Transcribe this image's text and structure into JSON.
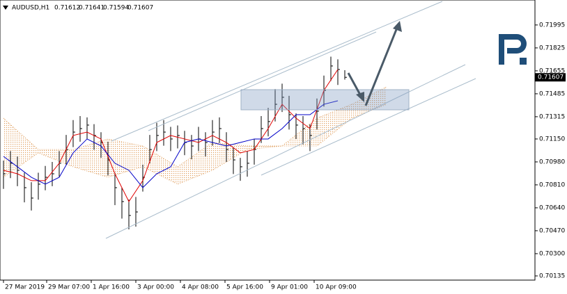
{
  "chart_data": {
    "type": "ohlc",
    "title": "AUDUSD,H1",
    "ohlc": [
      0.71612,
      0.71641,
      0.71594,
      0.71607
    ],
    "ylim": [
      0.70104,
      0.7218
    ],
    "yticks": [
      0.71995,
      0.71825,
      0.71655,
      0.71485,
      0.71315,
      {
        "value": 0.7115,
        "label": "0.71150"
      },
      {
        "value": 0.7098,
        "label": "0.70980"
      },
      {
        "value": 0.7081,
        "label": "0.70810"
      },
      {
        "value": 0.7064,
        "label": "0.70640"
      },
      {
        "value": 0.7047,
        "label": "0.70470"
      },
      {
        "value": 0.703,
        "label": "0.70300"
      },
      0.70135
    ],
    "xlim": [
      -0.5,
      76.3
    ],
    "xticks": [
      {
        "value": 0,
        "label": "27 Mar 2019"
      },
      {
        "value": 6.2,
        "label": "29 Mar 07:00"
      },
      {
        "value": 12.6,
        "label": "1 Apr 16:00"
      },
      {
        "value": 19,
        "label": "3 Apr 00:00"
      },
      {
        "value": 25.4,
        "label": "4 Apr 08:00"
      },
      {
        "value": 31.8,
        "label": "5 Apr 16:00"
      },
      {
        "value": 38.2,
        "label": "9 Apr 01:00"
      },
      {
        "value": 44.6,
        "label": "10 Apr 09:00"
      }
    ],
    "color": "#000000",
    "high": [
      0.7099,
      0.7106,
      0.7102,
      0.709,
      0.7083,
      0.709,
      0.7095,
      0.7098,
      0.7106,
      0.7118,
      0.7129,
      0.7132,
      0.7131,
      0.7126,
      0.712,
      0.7113,
      0.709,
      0.7079,
      0.707,
      0.7072,
      0.7096,
      0.7118,
      0.7127,
      0.7129,
      0.7124,
      0.7125,
      0.7121,
      0.7118,
      0.7124,
      0.712,
      0.7129,
      0.7131,
      0.712,
      0.7109,
      0.7101,
      0.7106,
      0.7115,
      0.7132,
      0.7138,
      0.7152,
      0.7156,
      0.7147,
      0.7134,
      0.7132,
      0.7126,
      0.7145,
      0.7162,
      0.7176,
      0.7174,
      0.7166
    ],
    "low": [
      0.7078,
      0.7086,
      0.708,
      0.7068,
      0.7062,
      0.707,
      0.7077,
      0.708,
      0.7087,
      0.7096,
      0.7109,
      0.7113,
      0.7115,
      0.7107,
      0.7101,
      0.7088,
      0.7066,
      0.7056,
      0.7048,
      0.705,
      0.7076,
      0.7097,
      0.7106,
      0.711,
      0.7106,
      0.7108,
      0.7103,
      0.71,
      0.7106,
      0.7102,
      0.711,
      0.7112,
      0.7098,
      0.7089,
      0.7084,
      0.7087,
      0.7096,
      0.7112,
      0.7117,
      0.7128,
      0.7135,
      0.7122,
      0.7115,
      0.7111,
      0.7106,
      0.7122,
      0.7139,
      0.7158,
      0.7155,
      0.7159
    ],
    "close": [
      0.70892,
      0.7097,
      0.70918,
      0.70789,
      0.70712,
      0.70815,
      0.70866,
      0.70892,
      0.7097,
      0.71072,
      0.71201,
      0.71227,
      0.71253,
      0.71176,
      0.71124,
      0.70995,
      0.70789,
      0.70686,
      0.70583,
      0.70609,
      0.70866,
      0.71072,
      0.71176,
      0.71201,
      0.7115,
      0.71176,
      0.71124,
      0.71098,
      0.7115,
      0.71124,
      0.71201,
      0.71227,
      0.71072,
      0.70995,
      0.70944,
      0.7097,
      0.71072,
      0.71227,
      0.71279,
      0.71407,
      0.71459,
      0.7133,
      0.71253,
      0.71227,
      0.71176,
      0.71356,
      0.7151,
      0.71691,
      0.71665,
      0.71607
    ],
    "lines": [
      {
        "color": "#e00000",
        "x": [
          0,
          2,
          4,
          6,
          8,
          10,
          12,
          14,
          16,
          18,
          20,
          22,
          24,
          26,
          28,
          30,
          32,
          34,
          36,
          38,
          40,
          42,
          44,
          46,
          48
        ],
        "values": [
          0.70918,
          0.70892,
          0.70841,
          0.70841,
          0.7097,
          0.71176,
          0.71201,
          0.7115,
          0.70892,
          0.70686,
          0.70841,
          0.71124,
          0.71176,
          0.7115,
          0.71124,
          0.71176,
          0.71124,
          0.71047,
          0.71072,
          0.71227,
          0.71407,
          0.71304,
          0.71227,
          0.7151,
          0.71665
        ]
      },
      {
        "color": "#0000c8",
        "x": [
          0,
          2,
          4,
          6,
          8,
          10,
          12,
          14,
          16,
          18,
          20,
          22,
          24,
          26,
          28,
          30,
          32,
          34,
          36,
          38,
          40,
          42,
          44,
          46,
          48
        ],
        "values": [
          0.71021,
          0.70944,
          0.70866,
          0.70815,
          0.70866,
          0.71047,
          0.7115,
          0.71098,
          0.7097,
          0.70918,
          0.70789,
          0.70892,
          0.70944,
          0.71124,
          0.7115,
          0.71124,
          0.71098,
          0.71124,
          0.7115,
          0.7115,
          0.71227,
          0.7133,
          0.7133,
          0.71407,
          0.71433
        ]
      }
    ],
    "cloud": {
      "color": "#e0a060",
      "x": [
        0,
        5,
        10,
        15,
        20,
        25,
        30,
        35,
        40,
        45,
        50,
        55
      ],
      "span_a": [
        0.71304,
        0.71072,
        0.71072,
        0.7115,
        0.71098,
        0.70944,
        0.71124,
        0.71098,
        0.71098,
        0.71304,
        0.71407,
        0.71536
      ],
      "span_b": [
        0.70866,
        0.71047,
        0.70944,
        0.70866,
        0.70944,
        0.70815,
        0.70918,
        0.71072,
        0.71098,
        0.71098,
        0.71304,
        0.71407
      ]
    }
  }
}
